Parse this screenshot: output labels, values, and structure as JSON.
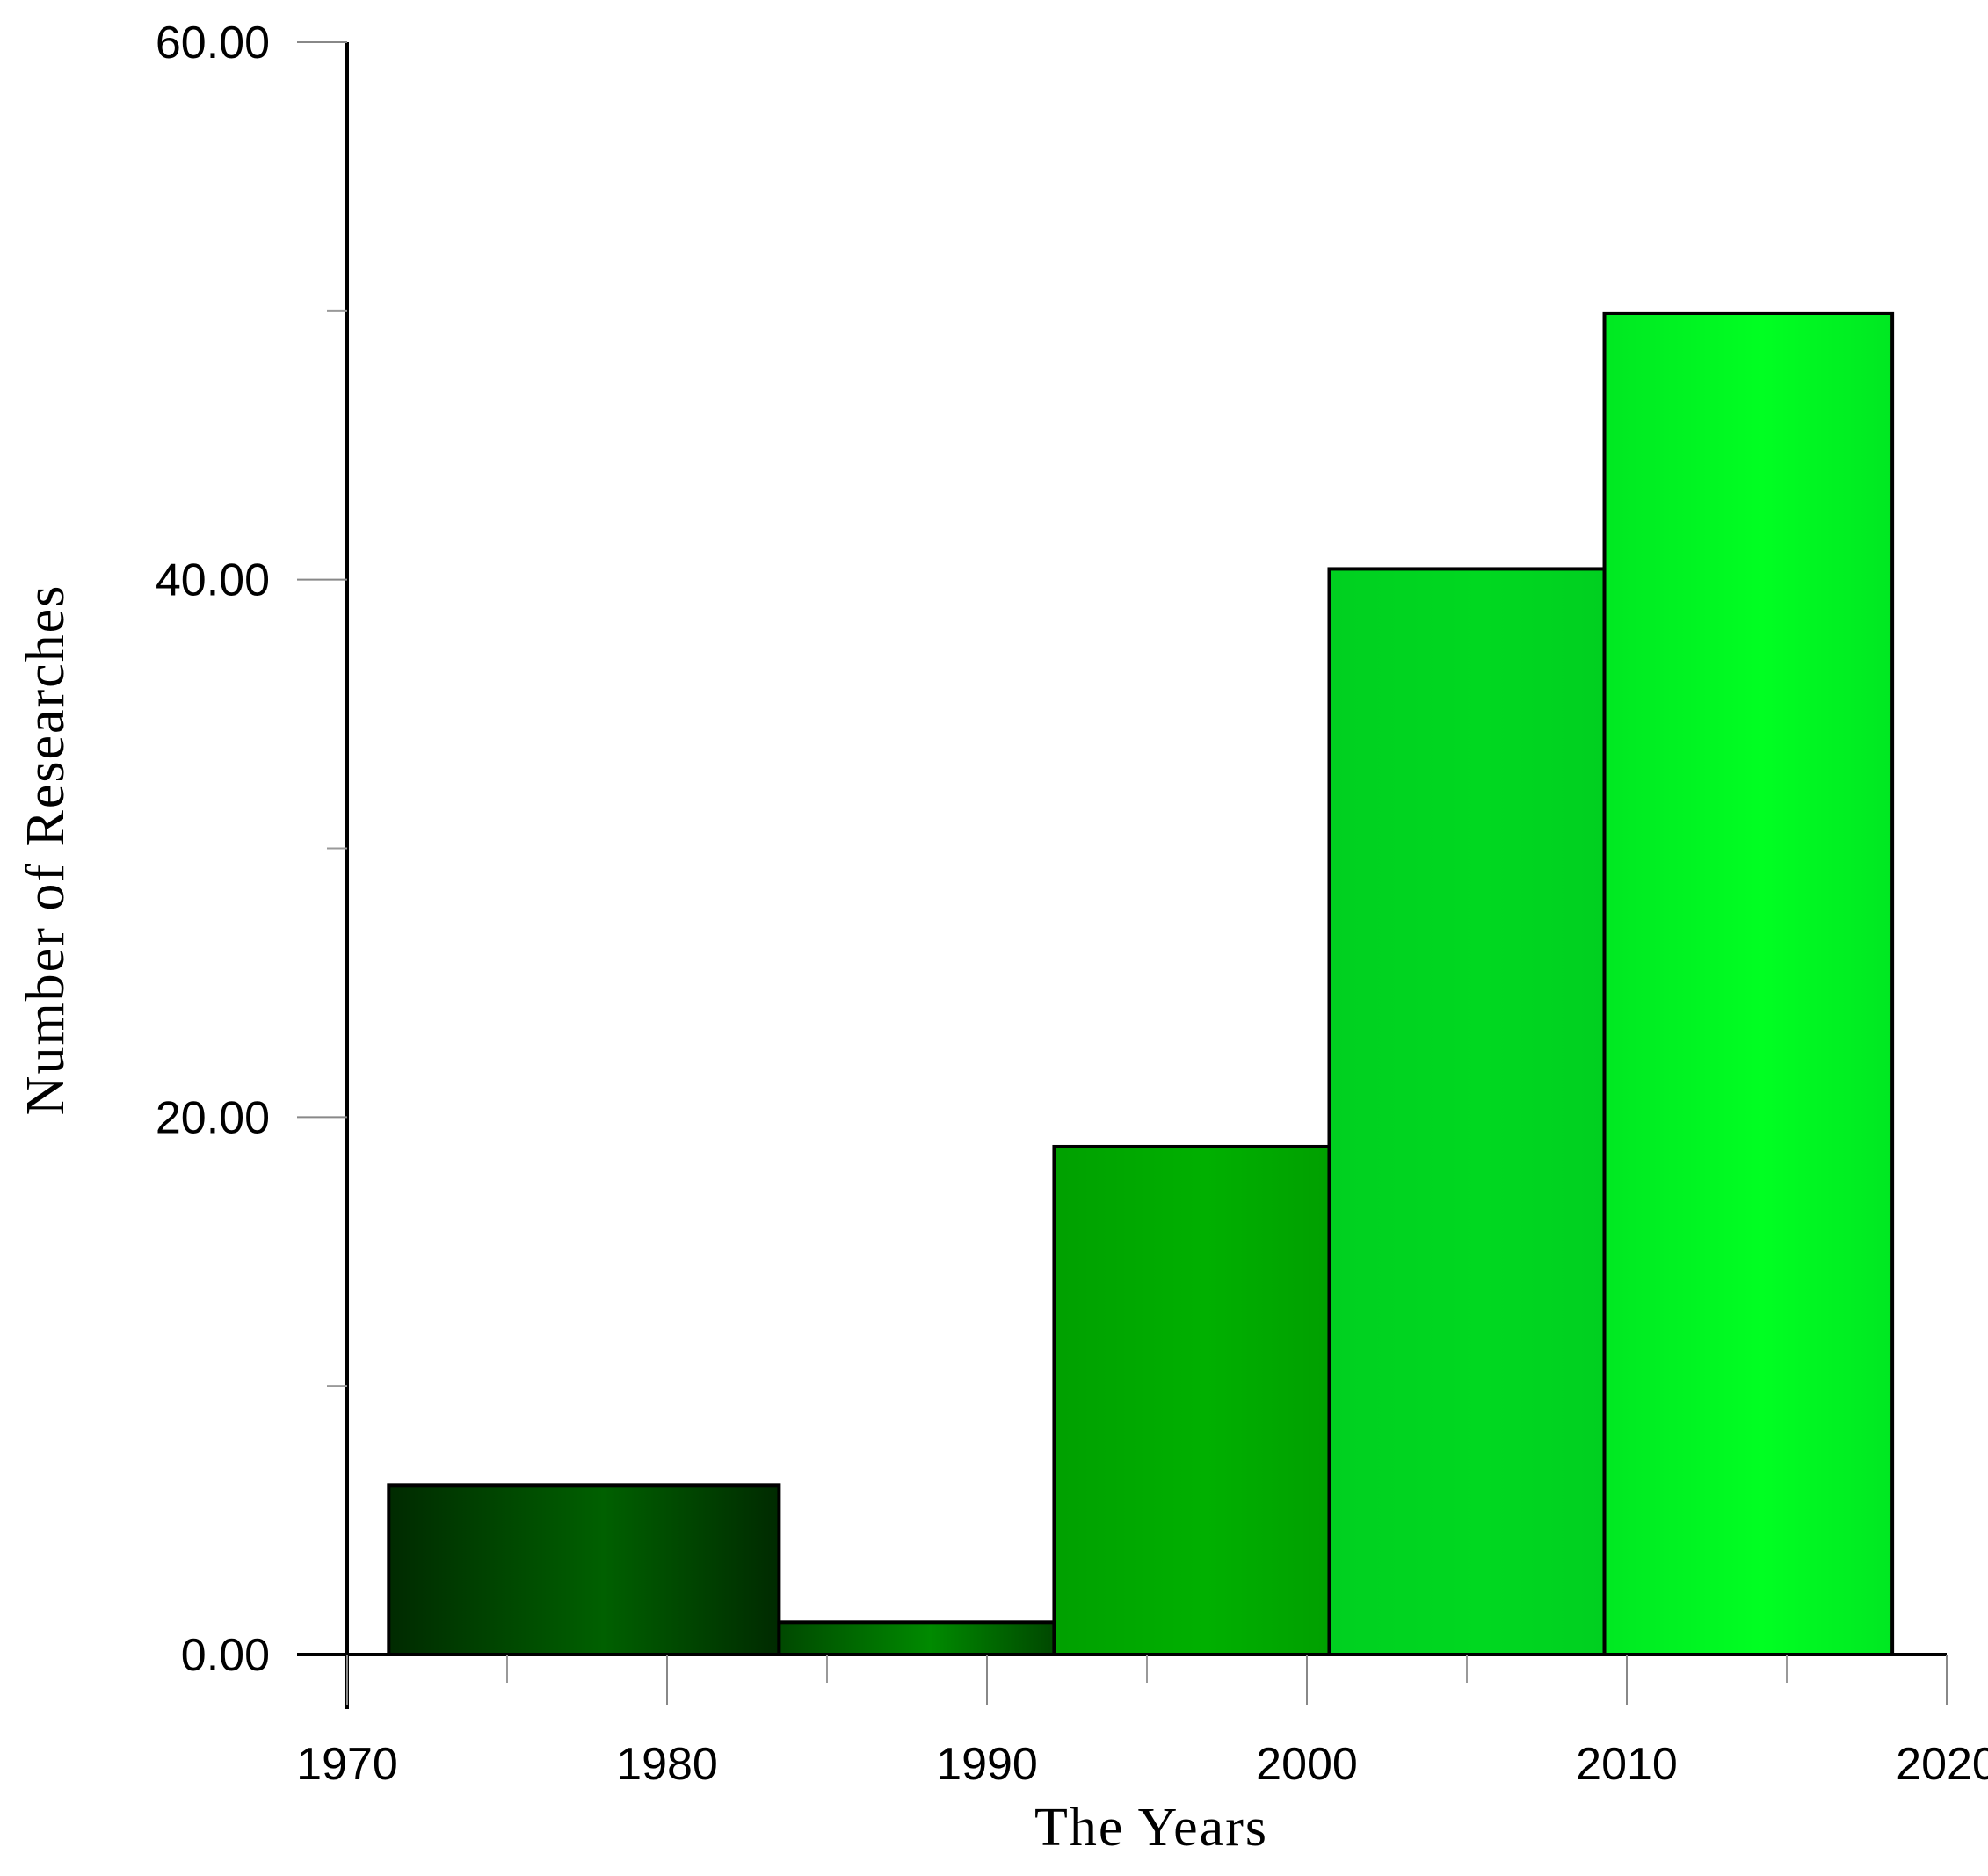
{
  "chart_data": {
    "type": "bar",
    "xlabel": "The Years",
    "ylabel": "Number of Researches",
    "xlim": [
      1970,
      2020
    ],
    "ylim": [
      0,
      60
    ],
    "x_ticks": [
      "1970",
      "1980",
      "1990",
      "2000",
      "2010",
      "2020"
    ],
    "x_tick_values": [
      1970,
      1980,
      1990,
      2000,
      2010,
      2020
    ],
    "x_minor_ticks": [
      1975,
      1985,
      1995,
      2005,
      2015
    ],
    "y_ticks": [
      "0.00",
      "20.00",
      "40.00",
      "60.00"
    ],
    "y_tick_values": [
      0,
      20,
      40,
      60
    ],
    "y_minor_ticks": [
      10,
      30,
      50
    ],
    "bins": [
      {
        "x_start": 1971.3,
        "x_end": 1983.5,
        "value": 6.3
      },
      {
        "x_start": 1983.5,
        "x_end": 1992.1,
        "value": 1.2
      },
      {
        "x_start": 1992.1,
        "x_end": 2000.7,
        "value": 18.9
      },
      {
        "x_start": 2000.7,
        "x_end": 2009.3,
        "value": 40.4
      },
      {
        "x_start": 2009.3,
        "x_end": 2018.3,
        "value": 49.9
      }
    ],
    "colors": {
      "edge": [
        "#002a00",
        "#004800",
        "#00a000",
        "#00d020",
        "#00e822"
      ],
      "center": [
        "#006000",
        "#008a00",
        "#00b000",
        "#00d820",
        "#00ff22"
      ],
      "outline": "#000000"
    },
    "grid": false,
    "legend": "none"
  }
}
